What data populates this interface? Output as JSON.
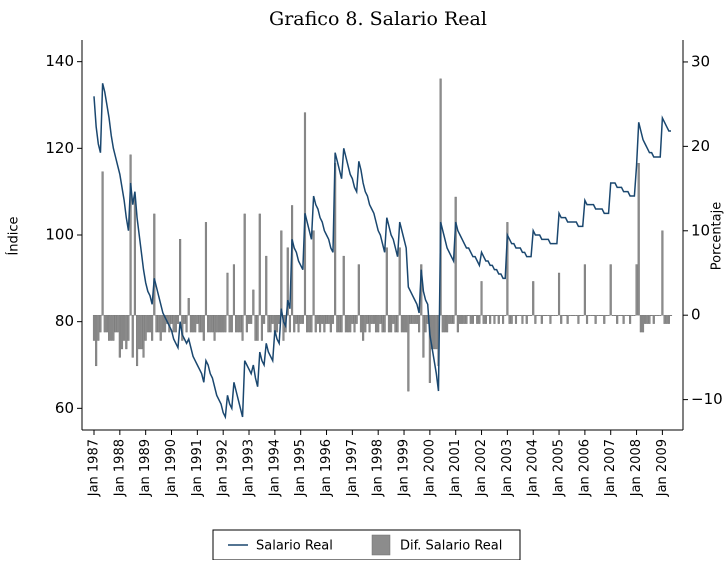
{
  "chart_data": {
    "type": "combo",
    "title": "Grafico 8. Salario Real",
    "y_label": "Índice",
    "y2_label": "Porcentaje",
    "categories": [
      "Jan 1987",
      null,
      null,
      null,
      null,
      null,
      null,
      null,
      null,
      null,
      null,
      null,
      "Jan 1988",
      null,
      null,
      null,
      null,
      null,
      null,
      null,
      null,
      null,
      null,
      null,
      "Jan 1989",
      null,
      null,
      null,
      null,
      null,
      null,
      null,
      null,
      null,
      null,
      null,
      "Jan 1990",
      null,
      null,
      null,
      null,
      null,
      null,
      null,
      null,
      null,
      null,
      null,
      "Jan 1991",
      null,
      null,
      null,
      null,
      null,
      null,
      null,
      null,
      null,
      null,
      null,
      "Jan 1992",
      null,
      null,
      null,
      null,
      null,
      null,
      null,
      null,
      null,
      null,
      null,
      "Jan 1993",
      null,
      null,
      null,
      null,
      null,
      null,
      null,
      null,
      null,
      null,
      null,
      "Jan 1994",
      null,
      null,
      null,
      null,
      null,
      null,
      null,
      null,
      null,
      null,
      null,
      "Jan 1995",
      null,
      null,
      null,
      null,
      null,
      null,
      null,
      null,
      null,
      null,
      null,
      "Jan 1996",
      null,
      null,
      null,
      null,
      null,
      null,
      null,
      null,
      null,
      null,
      null,
      "Jan 1997",
      null,
      null,
      null,
      null,
      null,
      null,
      null,
      null,
      null,
      null,
      null,
      "Jan 1998",
      null,
      null,
      null,
      null,
      null,
      null,
      null,
      null,
      null,
      null,
      null,
      "Jan 1999",
      null,
      null,
      null,
      null,
      null,
      null,
      null,
      null,
      null,
      null,
      null,
      "Jan 2000",
      null,
      null,
      null,
      null,
      null,
      null,
      null,
      null,
      null,
      null,
      null,
      "Jan 2001",
      null,
      null,
      null,
      null,
      null,
      null,
      null,
      null,
      null,
      null,
      null,
      "Jan 2002",
      null,
      null,
      null,
      null,
      null,
      null,
      null,
      null,
      null,
      null,
      null,
      "Jan 2003",
      null,
      null,
      null,
      null,
      null,
      null,
      null,
      null,
      null,
      null,
      null,
      "Jan 2004",
      null,
      null,
      null,
      null,
      null,
      null,
      null,
      null,
      null,
      null,
      null,
      "Jan 2005",
      null,
      null,
      null,
      null,
      null,
      null,
      null,
      null,
      null,
      null,
      null,
      "Jan 2006",
      null,
      null,
      null,
      null,
      null,
      null,
      null,
      null,
      null,
      null,
      null,
      "Jan 2007",
      null,
      null,
      null,
      null,
      null,
      null,
      null,
      null,
      null,
      null,
      null,
      "Jan 2008",
      null,
      null,
      null,
      null,
      null,
      null,
      null,
      null,
      null,
      null,
      null,
      "Jan 2009",
      null,
      null,
      null,
      null
    ],
    "series": [
      {
        "name": "Dif. Salario Real",
        "type": "bar",
        "axis": "y2",
        "color": "#8c8c8c",
        "values": [
          -3,
          -6,
          -3,
          -2,
          17,
          -2,
          -2,
          -3,
          -3,
          -3,
          -2,
          -2,
          -5,
          -4,
          -3,
          -4,
          -3,
          19,
          -5,
          14,
          -6,
          -4,
          -4,
          -5,
          -3,
          -2,
          -2,
          -3,
          12,
          -2,
          -2,
          -3,
          -2,
          -2,
          -1,
          -2,
          -1,
          -2,
          -2,
          -1,
          9,
          -3,
          -1,
          -2,
          2,
          -2,
          -2,
          -2,
          -1,
          -2,
          -2,
          -3,
          11,
          -2,
          -2,
          -2,
          -3,
          -2,
          -2,
          -2,
          -2,
          -2,
          5,
          -2,
          -2,
          6,
          -2,
          -2,
          -2,
          -3,
          12,
          -2,
          -1,
          -1,
          3,
          -3,
          -3,
          12,
          -3,
          -1,
          7,
          -2,
          -2,
          -1,
          -2,
          -2,
          -1,
          10,
          -3,
          -2,
          8,
          -2,
          13,
          -2,
          -1,
          -2,
          -1,
          -1,
          24,
          -2,
          -2,
          -2,
          10,
          -2,
          -1,
          -2,
          -1,
          -2,
          -1,
          -1,
          -2,
          -1,
          18,
          -2,
          -2,
          -2,
          7,
          -2,
          -2,
          -2,
          -1,
          -2,
          -1,
          6,
          -2,
          -3,
          -2,
          -1,
          -2,
          -1,
          -1,
          -2,
          -2,
          -1,
          -2,
          -2,
          8,
          -2,
          -2,
          -1,
          -2,
          -2,
          8,
          -2,
          -2,
          -2,
          -9,
          -1,
          -1,
          -1,
          -1,
          -2,
          6,
          -5,
          -2,
          -1,
          -8,
          -4,
          -4,
          -4,
          -6,
          28,
          -2,
          -2,
          -2,
          -1,
          -1,
          -1,
          14,
          -2,
          -1,
          -1,
          -1,
          -1,
          0,
          -1,
          -1,
          0,
          -1,
          -1,
          4,
          -1,
          -1,
          0,
          -1,
          0,
          -1,
          0,
          -1,
          0,
          -1,
          0,
          11,
          -1,
          -1,
          0,
          -1,
          0,
          0,
          -1,
          0,
          -1,
          0,
          0,
          4,
          -1,
          0,
          0,
          -1,
          0,
          0,
          0,
          -1,
          0,
          0,
          0,
          5,
          -1,
          0,
          0,
          -1,
          0,
          0,
          0,
          0,
          -1,
          0,
          0,
          6,
          -1,
          0,
          0,
          0,
          -1,
          0,
          0,
          0,
          -1,
          0,
          0,
          6,
          0,
          0,
          -1,
          0,
          0,
          -1,
          0,
          0,
          -1,
          0,
          0,
          6,
          18,
          -2,
          -2,
          -1,
          -1,
          -1,
          0,
          -1,
          0,
          0,
          0,
          10,
          -1,
          -1,
          -1,
          0
        ]
      },
      {
        "name": "Salario Real",
        "type": "line",
        "color": "#1a476f",
        "values": [
          132,
          125,
          121,
          119,
          135,
          133,
          130,
          127,
          123,
          120,
          118,
          116,
          114,
          111,
          108,
          104,
          101,
          112,
          107,
          110,
          104,
          100,
          96,
          92,
          89,
          87,
          86,
          84,
          90,
          88,
          86,
          84,
          82,
          81,
          80,
          79,
          78,
          76,
          75,
          74,
          80,
          77,
          76,
          75,
          76,
          74,
          72,
          71,
          70,
          69,
          68,
          66,
          71,
          70,
          68,
          67,
          65,
          63,
          62,
          61,
          59,
          58,
          63,
          61,
          60,
          66,
          64,
          62,
          60,
          58,
          71,
          70,
          69,
          68,
          70,
          67,
          65,
          73,
          71,
          70,
          75,
          73,
          72,
          71,
          78,
          76,
          75,
          83,
          80,
          79,
          85,
          83,
          99,
          97,
          96,
          94,
          93,
          92,
          105,
          103,
          101,
          99,
          109,
          107,
          106,
          104,
          103,
          101,
          100,
          99,
          97,
          96,
          119,
          117,
          115,
          113,
          120,
          118,
          116,
          114,
          113,
          111,
          110,
          117,
          115,
          112,
          110,
          109,
          107,
          106,
          105,
          103,
          101,
          100,
          98,
          96,
          104,
          102,
          100,
          99,
          97,
          95,
          103,
          101,
          99,
          97,
          88,
          87,
          86,
          85,
          84,
          82,
          92,
          87,
          85,
          84,
          77,
          74,
          71,
          68,
          64,
          103,
          101,
          99,
          97,
          96,
          95,
          94,
          103,
          101,
          100,
          99,
          98,
          97,
          97,
          96,
          95,
          95,
          94,
          93,
          96,
          95,
          94,
          94,
          93,
          93,
          92,
          92,
          91,
          91,
          90,
          90,
          100,
          99,
          98,
          98,
          97,
          97,
          97,
          96,
          96,
          95,
          95,
          95,
          101,
          100,
          100,
          100,
          99,
          99,
          99,
          99,
          98,
          98,
          98,
          98,
          105,
          104,
          104,
          104,
          103,
          103,
          103,
          103,
          103,
          102,
          102,
          102,
          108,
          107,
          107,
          107,
          107,
          106,
          106,
          106,
          106,
          105,
          105,
          105,
          112,
          112,
          112,
          111,
          111,
          111,
          110,
          110,
          110,
          109,
          109,
          109,
          116,
          126,
          124,
          122,
          121,
          120,
          119,
          119,
          118,
          118,
          118,
          118,
          127,
          126,
          125,
          124,
          124
        ]
      }
    ],
    "ylim": [
      55,
      145
    ],
    "yticks": [
      60,
      80,
      100,
      120,
      140
    ],
    "y2lim": [
      -13.6,
      32.6
    ],
    "y2ticks": [
      {
        "value": -10,
        "label": "−10"
      },
      0,
      10,
      20,
      30
    ]
  }
}
